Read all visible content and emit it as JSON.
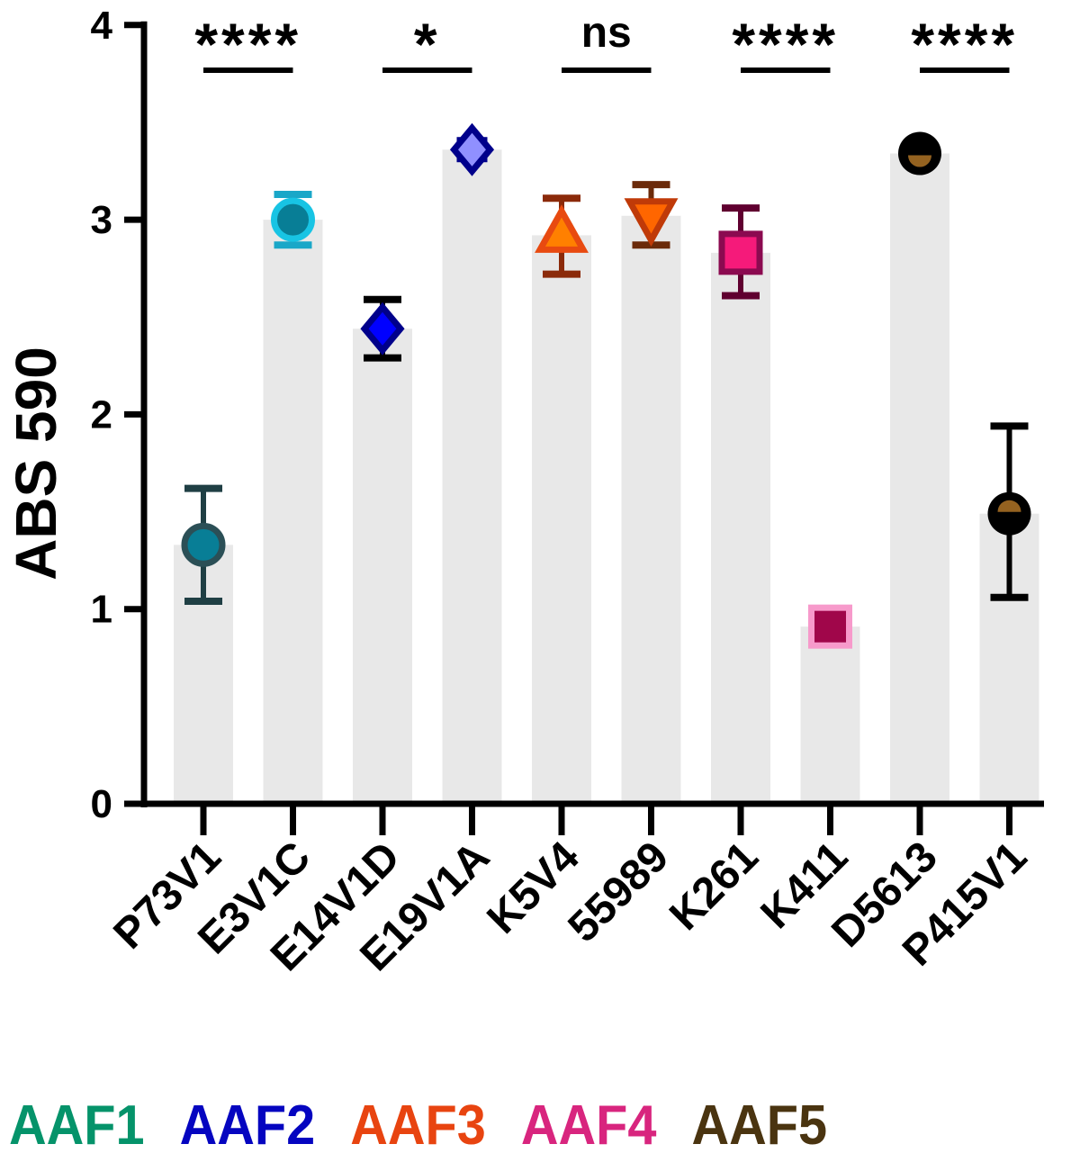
{
  "chart_data": {
    "type": "bar",
    "ylabel": "ABS 590",
    "ylim": [
      0,
      4
    ],
    "yticks": [
      "0",
      "1",
      "2",
      "3",
      "4"
    ],
    "grid": false,
    "categories": [
      "P73V1",
      "E3V1C",
      "E14V1D",
      "E19V1A",
      "K5V4",
      "55989",
      "K261",
      "K411",
      "D5613",
      "P415V1"
    ],
    "values": [
      1.33,
      3.0,
      2.44,
      3.36,
      2.92,
      3.02,
      2.83,
      0.91,
      3.34,
      1.49
    ],
    "error_upper": [
      1.62,
      3.13,
      2.59,
      null,
      3.11,
      3.18,
      3.06,
      null,
      null,
      1.94
    ],
    "error_lower": [
      1.04,
      2.87,
      2.29,
      null,
      2.72,
      2.87,
      2.61,
      null,
      null,
      1.06
    ],
    "bar_color": "#E8E8E8",
    "markers": [
      {
        "shape": "circle",
        "fill": "#087E96",
        "stroke": "#2B4F56",
        "error": "#1F3F44"
      },
      {
        "shape": "circle",
        "fill": "#087E96",
        "stroke": "#18C4E4",
        "error": "#1AA7C8"
      },
      {
        "shape": "diamond",
        "fill": "#0000FF",
        "stroke": "#00008B",
        "error": "#000000"
      },
      {
        "shape": "star-diamond",
        "fill": "#9090FF",
        "stroke": "#00008B",
        "error": "#000000"
      },
      {
        "shape": "triangle-up",
        "fill": "#FF8000",
        "stroke": "#E84A10",
        "error": "#8B2A0A"
      },
      {
        "shape": "triangle-down",
        "fill": "#FF6600",
        "stroke": "#C03A08",
        "error": "#6B2A0A"
      },
      {
        "shape": "square",
        "fill": "#F51A7A",
        "stroke": "#8B0A50",
        "error": "#600030"
      },
      {
        "shape": "square",
        "fill": "#A0064A",
        "stroke": "#F79ACB",
        "error": "#600030"
      },
      {
        "shape": "half-circle-bottom",
        "fill": "#946220",
        "stroke": "#000000",
        "error": "#000000"
      },
      {
        "shape": "half-circle-top",
        "fill": "#946220",
        "stroke": "#000000",
        "error": "#000000"
      }
    ],
    "significance": [
      {
        "pair": [
          "P73V1",
          "E3V1C"
        ],
        "label": "****"
      },
      {
        "pair": [
          "E14V1D",
          "E19V1A"
        ],
        "label": "*"
      },
      {
        "pair": [
          "K5V4",
          "55989"
        ],
        "label": "ns"
      },
      {
        "pair": [
          "K261",
          "K411"
        ],
        "label": "****"
      },
      {
        "pair": [
          "D5613",
          "P415V1"
        ],
        "label": "****"
      }
    ]
  },
  "legend": [
    {
      "label": "AAF1",
      "color": "#05936A"
    },
    {
      "label": "AAF2",
      "color": "#0505C0"
    },
    {
      "label": "AAF3",
      "color": "#E84410"
    },
    {
      "label": "AAF4",
      "color": "#D8257E"
    },
    {
      "label": "AAF5",
      "color": "#4A3410"
    }
  ]
}
